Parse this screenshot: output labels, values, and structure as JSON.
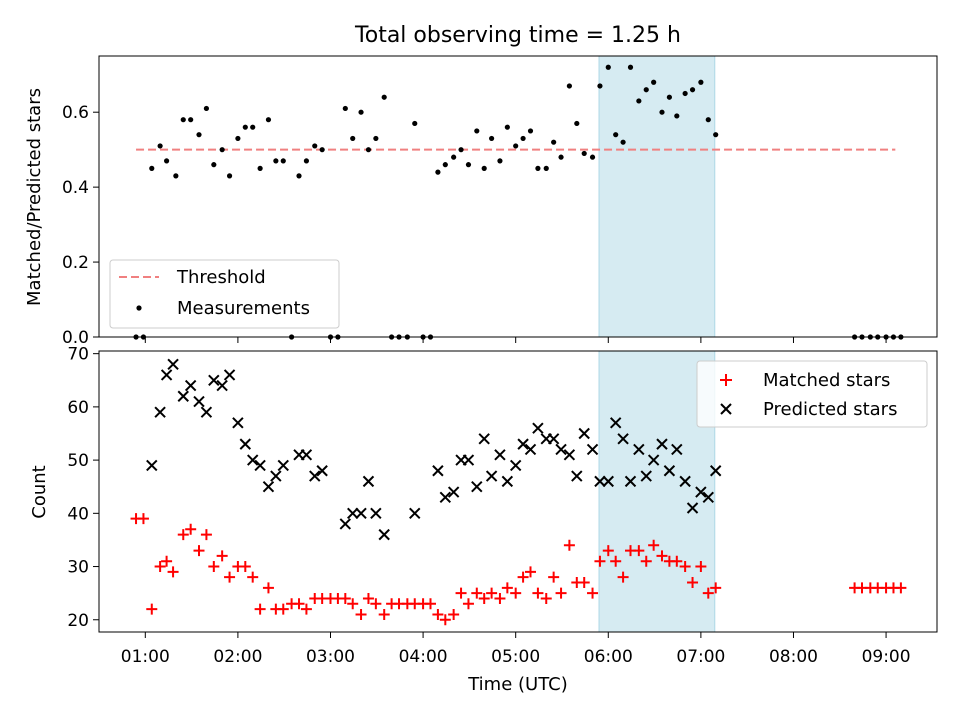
{
  "figure_title": "Total observing time = 1.25 h",
  "colors": {
    "threshold": "#f08080",
    "highlight": "#add8e6",
    "matched": "#ff0000",
    "predicted": "#000000",
    "measurement": "#000000"
  },
  "chart_data": [
    {
      "type": "scatter",
      "title": "Total observing time = 1.25 h",
      "xlabel": "",
      "ylabel": "Matched/Predicted stars",
      "xlim": [
        0.5,
        9.55
      ],
      "ylim": [
        0,
        0.75
      ],
      "yticks": [
        0.0,
        0.2,
        0.4,
        0.6
      ],
      "ytick_labels": [
        "0.0",
        "0.2",
        "0.4",
        "0.6"
      ],
      "highlight_span": [
        5.9,
        7.15
      ],
      "legend": {
        "placement": "lower-left",
        "entries": [
          "Threshold",
          "Measurements"
        ]
      },
      "series": [
        {
          "name": "Threshold",
          "kind": "dashed-line",
          "x": [
            0.9,
            9.1
          ],
          "y": [
            0.5,
            0.5
          ]
        },
        {
          "name": "Measurements",
          "kind": "dots",
          "x": [
            0.9,
            0.98,
            1.07,
            1.16,
            1.23,
            1.33,
            1.41,
            1.49,
            1.58,
            1.66,
            1.74,
            1.83,
            1.91,
            2.0,
            2.08,
            2.16,
            2.24,
            2.33,
            2.41,
            2.49,
            2.58,
            2.66,
            2.74,
            2.83,
            2.91,
            3.0,
            3.08,
            3.16,
            3.24,
            3.33,
            3.41,
            3.49,
            3.58,
            3.66,
            3.74,
            3.83,
            3.91,
            4.0,
            4.08,
            4.16,
            4.24,
            4.33,
            4.41,
            4.49,
            4.58,
            4.66,
            4.74,
            4.83,
            4.91,
            5.0,
            5.08,
            5.16,
            5.24,
            5.33,
            5.41,
            5.49,
            5.58,
            5.66,
            5.74,
            5.83,
            5.91,
            6.0,
            6.08,
            6.16,
            6.24,
            6.33,
            6.41,
            6.49,
            6.58,
            6.66,
            6.74,
            6.83,
            6.91,
            7.0,
            7.08,
            7.16,
            8.66,
            8.74,
            8.83,
            8.91,
            9.0,
            9.08,
            9.16
          ],
          "y": [
            0.0,
            0.0,
            0.45,
            0.51,
            0.47,
            0.43,
            0.58,
            0.58,
            0.54,
            0.61,
            0.46,
            0.5,
            0.43,
            0.53,
            0.56,
            0.56,
            0.45,
            0.58,
            0.47,
            0.47,
            0.0,
            0.43,
            0.47,
            0.51,
            0.5,
            0.0,
            0.0,
            0.61,
            0.53,
            0.6,
            0.5,
            0.53,
            0.64,
            0.0,
            0.0,
            0.0,
            0.57,
            0.0,
            0.0,
            0.44,
            0.46,
            0.48,
            0.5,
            0.46,
            0.55,
            0.45,
            0.53,
            0.47,
            0.56,
            0.51,
            0.53,
            0.55,
            0.45,
            0.45,
            0.52,
            0.48,
            0.67,
            0.57,
            0.49,
            0.48,
            0.67,
            0.72,
            0.54,
            0.52,
            0.72,
            0.63,
            0.66,
            0.68,
            0.6,
            0.64,
            0.59,
            0.65,
            0.66,
            0.68,
            0.58,
            0.54,
            0.0,
            0.0,
            0.0,
            0.0,
            0.0,
            0.0,
            0.0
          ]
        }
      ]
    },
    {
      "type": "scatter",
      "title": "",
      "xlabel": "Time (UTC)",
      "ylabel": "Count",
      "xlim": [
        0.5,
        9.55
      ],
      "ylim": [
        17.7,
        70.5
      ],
      "yticks": [
        20,
        30,
        40,
        50,
        60,
        70
      ],
      "ytick_labels": [
        "20",
        "30",
        "40",
        "50",
        "60",
        "70"
      ],
      "xticks": [
        1,
        2,
        3,
        4,
        5,
        6,
        7,
        8,
        9
      ],
      "xtick_labels": [
        "01:00",
        "02:00",
        "03:00",
        "04:00",
        "05:00",
        "06:00",
        "07:00",
        "08:00",
        "09:00"
      ],
      "highlight_span": [
        5.9,
        7.15
      ],
      "legend": {
        "placement": "top-right",
        "entries": [
          "Matched stars",
          "Predicted stars"
        ]
      },
      "series": [
        {
          "name": "Matched stars",
          "marker": "plus",
          "x": [
            0.9,
            0.98,
            1.07,
            1.16,
            1.23,
            1.3,
            1.41,
            1.49,
            1.58,
            1.66,
            1.74,
            1.83,
            1.91,
            2.0,
            2.08,
            2.16,
            2.24,
            2.33,
            2.41,
            2.49,
            2.58,
            2.66,
            2.74,
            2.83,
            2.91,
            3.0,
            3.08,
            3.16,
            3.24,
            3.33,
            3.41,
            3.49,
            3.58,
            3.66,
            3.74,
            3.83,
            3.91,
            4.0,
            4.08,
            4.16,
            4.24,
            4.33,
            4.41,
            4.49,
            4.58,
            4.66,
            4.74,
            4.83,
            4.91,
            5.0,
            5.08,
            5.16,
            5.24,
            5.33,
            5.41,
            5.49,
            5.58,
            5.66,
            5.74,
            5.83,
            5.91,
            6.0,
            6.08,
            6.16,
            6.24,
            6.33,
            6.41,
            6.49,
            6.58,
            6.66,
            6.74,
            6.83,
            6.91,
            7.0,
            7.08,
            7.16,
            8.66,
            8.74,
            8.83,
            8.91,
            9.0,
            9.08,
            9.16
          ],
          "y": [
            39,
            39,
            22,
            30,
            31,
            29,
            36,
            37,
            33,
            36,
            30,
            32,
            28,
            30,
            30,
            28,
            22,
            26,
            22,
            22,
            23,
            23,
            22,
            24,
            24,
            24,
            24,
            24,
            23,
            21,
            24,
            23,
            21,
            23,
            23,
            23,
            23,
            23,
            23,
            21,
            20,
            21,
            25,
            23,
            25,
            24,
            25,
            24,
            26,
            25,
            28,
            29,
            25,
            24,
            28,
            25,
            34,
            27,
            27,
            25,
            31,
            33,
            31,
            28,
            33,
            33,
            31,
            34,
            32,
            31,
            31,
            30,
            27,
            30,
            25,
            26,
            26,
            26,
            26,
            26,
            26,
            26,
            26
          ]
        },
        {
          "name": "Predicted stars",
          "marker": "x",
          "x": [
            1.07,
            1.16,
            1.23,
            1.3,
            1.41,
            1.49,
            1.58,
            1.66,
            1.74,
            1.83,
            1.91,
            2.0,
            2.08,
            2.16,
            2.24,
            2.33,
            2.41,
            2.49,
            2.66,
            2.74,
            2.83,
            2.91,
            3.16,
            3.24,
            3.33,
            3.41,
            3.49,
            3.58,
            3.91,
            4.16,
            4.24,
            4.33,
            4.41,
            4.49,
            4.58,
            4.66,
            4.74,
            4.83,
            4.91,
            5.0,
            5.08,
            5.16,
            5.24,
            5.33,
            5.41,
            5.49,
            5.58,
            5.66,
            5.74,
            5.83,
            5.91,
            6.0,
            6.08,
            6.16,
            6.24,
            6.33,
            6.41,
            6.49,
            6.58,
            6.66,
            6.74,
            6.83,
            6.91,
            7.0,
            7.08,
            7.16
          ],
          "y": [
            49,
            59,
            66,
            68,
            62,
            64,
            61,
            59,
            65,
            64,
            66,
            57,
            53,
            50,
            49,
            45,
            47,
            49,
            51,
            51,
            47,
            48,
            38,
            40,
            40,
            46,
            40,
            36,
            40,
            48,
            43,
            44,
            50,
            50,
            45,
            54,
            47,
            51,
            46,
            49,
            53,
            52,
            56,
            54,
            54,
            52,
            51,
            47,
            55,
            52,
            46,
            46,
            57,
            54,
            46,
            52,
            47,
            50,
            53,
            48,
            52,
            46,
            41,
            44,
            43,
            48
          ]
        }
      ]
    }
  ]
}
